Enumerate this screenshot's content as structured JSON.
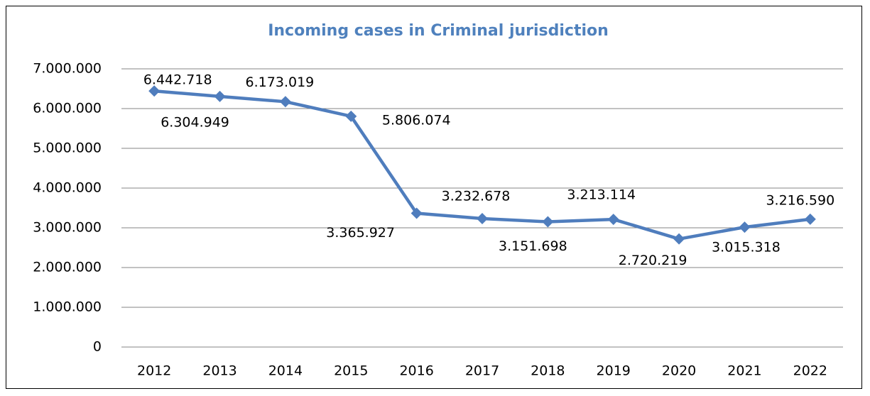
{
  "chart_data": {
    "type": "line",
    "title": "Incoming cases in Criminal jurisdiction",
    "categories": [
      "2012",
      "2013",
      "2014",
      "2015",
      "2016",
      "2017",
      "2018",
      "2019",
      "2020",
      "2021",
      "2022"
    ],
    "series": [
      {
        "name": "Incoming cases",
        "color": "#4f7dbd",
        "values": [
          6442718,
          6304949,
          6173019,
          5806074,
          3365927,
          3232678,
          3151698,
          3213114,
          2720219,
          3015318,
          3216590
        ],
        "value_labels": [
          "6.442.718",
          "6.304.949",
          "6.173.019",
          "5.806.074",
          "3.365.927",
          "3.232.678",
          "3.151.698",
          "3.213.114",
          "2.720.219",
          "3.015.318",
          "3.216.590"
        ]
      }
    ],
    "ylim": [
      0,
      7000000
    ],
    "yticks": [
      0,
      {
        "value": 1000000,
        "label": "1.000.000"
      },
      {
        "value": 2000000,
        "label": "2.000.000"
      },
      {
        "value": 3000000,
        "label": "3.000.000"
      },
      {
        "value": 4000000,
        "label": "4.000.000"
      },
      {
        "value": 5000000,
        "label": "5.000.000"
      },
      {
        "value": 6000000,
        "label": "6.000.000"
      },
      {
        "value": 7000000,
        "label": "7.000.000"
      }
    ],
    "grid": true
  }
}
